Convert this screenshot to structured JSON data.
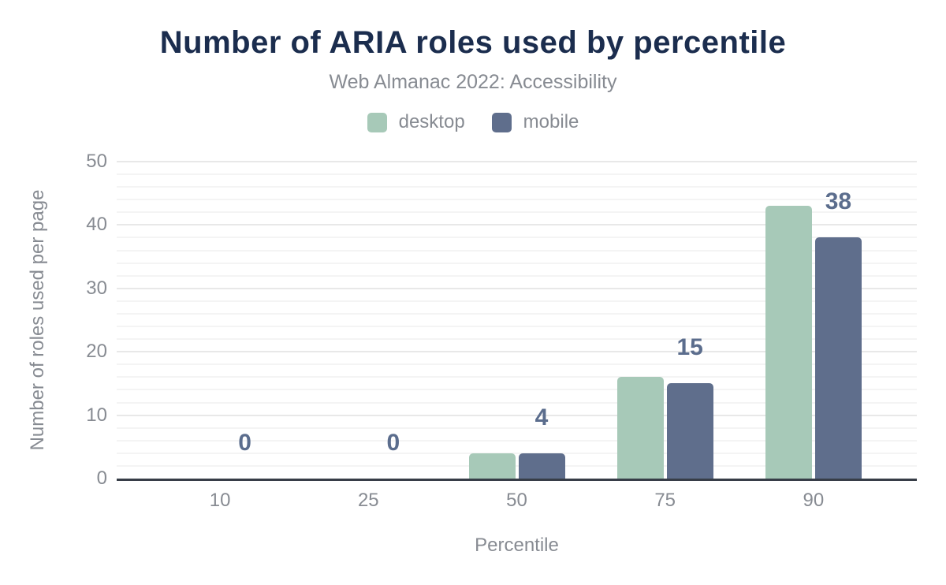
{
  "chart_data": {
    "type": "bar",
    "title": "Number of ARIA roles used by percentile",
    "subtitle": "Web Almanac 2022: Accessibility",
    "xlabel": "Percentile",
    "ylabel": "Number of roles used per page",
    "categories": [
      "10",
      "25",
      "50",
      "75",
      "90"
    ],
    "series": [
      {
        "name": "desktop",
        "color": "#a7c9b8",
        "values": [
          0,
          0,
          4,
          16,
          43
        ]
      },
      {
        "name": "mobile",
        "color": "#5f6e8c",
        "values": [
          0,
          0,
          4,
          15,
          38
        ]
      }
    ],
    "data_labels": {
      "series": "mobile",
      "values": [
        "0",
        "0",
        "4",
        "15",
        "38"
      ]
    },
    "ylim": [
      0,
      50
    ],
    "yticks": [
      0,
      10,
      20,
      30,
      40,
      50
    ],
    "grid": {
      "major_step": 10,
      "minor_step": 2,
      "major_color": "#e8e8e8",
      "minor_color": "#f4f4f4"
    },
    "legend_position": "top",
    "colors": {
      "title": "#1b2d4e",
      "axis_text": "#878b92",
      "value_label": "#5b6d8d",
      "axis_line": "#373d47"
    }
  }
}
